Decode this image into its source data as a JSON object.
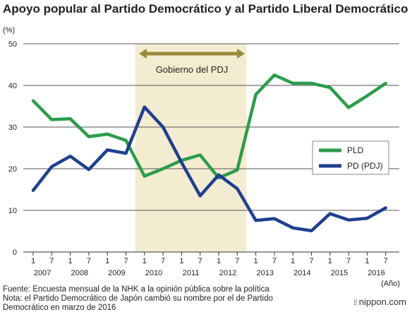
{
  "chart_data": {
    "type": "line",
    "title": "Apoyo popular al Partido Democrático y al Partido Liberal Democrático",
    "yunit": "(%)",
    "xunit": "(Año)",
    "ylim": [
      0,
      50
    ],
    "yticks": [
      0,
      10,
      20,
      30,
      40,
      50
    ],
    "grid": true,
    "legend_position": "right",
    "x_tick_labels": [
      "1",
      "7",
      "1",
      "7",
      "1",
      "7",
      "1",
      "7",
      "1",
      "7",
      "1",
      "7",
      "1",
      "7",
      "1",
      "7",
      "1",
      "7",
      "1",
      "7"
    ],
    "year_labels": [
      "2007",
      "2008",
      "2009",
      "2010",
      "2011",
      "2012",
      "2013",
      "2014",
      "2015",
      "2016"
    ],
    "period": {
      "label": "Gobierno del PDJ",
      "start_index": 5.5,
      "end_index": 11.5
    },
    "series": [
      {
        "name": "PLD",
        "color": "#2a9d4a",
        "x": [
          0,
          1,
          2,
          3,
          4,
          5,
          6,
          7,
          8,
          9,
          10,
          11,
          12,
          13,
          14,
          15,
          16,
          17,
          18,
          19
        ],
        "values": [
          36.3,
          31.8,
          32.0,
          27.7,
          28.3,
          26.8,
          18.2,
          20.0,
          22.0,
          23.3,
          17.8,
          19.7,
          37.8,
          42.5,
          40.5,
          40.5,
          39.5,
          34.7,
          37.5,
          40.5
        ]
      },
      {
        "name": "PD (PDJ)",
        "color": "#1e3f92",
        "x": [
          0,
          1,
          2,
          3,
          4,
          5,
          6,
          7,
          8,
          9,
          10,
          11,
          12,
          13,
          14,
          15,
          16,
          17,
          18,
          19
        ],
        "values": [
          14.8,
          20.5,
          23.0,
          19.8,
          24.5,
          23.7,
          34.8,
          30.0,
          21.5,
          13.5,
          18.5,
          15.2,
          7.6,
          8.0,
          5.8,
          5.1,
          9.2,
          7.7,
          8.1,
          10.6
        ]
      }
    ]
  },
  "footer": {
    "source": "Fuente: Encuesta mensual de la NHK a la opinión pública sobre la política",
    "note_line1": "Nota: el Partido Democrático de Japón cambió su nombre por el de Partido",
    "note_line2": "Democrático en marzo de 2016",
    "brand": "nippon.com"
  }
}
